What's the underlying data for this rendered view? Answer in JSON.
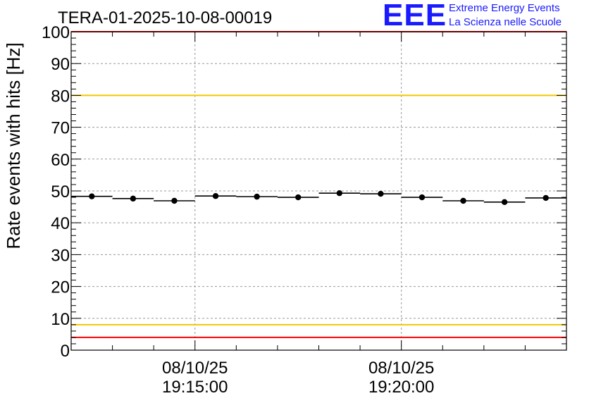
{
  "chart_data": {
    "type": "scatter",
    "title": "TERA-01-2025-10-08-00019",
    "ylabel": "Rate events with hits [Hz]",
    "xlabel": "",
    "ylim": [
      0,
      100
    ],
    "xlim": [
      -3.0,
      9.0
    ],
    "x_unit": "minutes after 19:15:00",
    "yticks": [
      0,
      10,
      20,
      30,
      40,
      50,
      60,
      70,
      80,
      90,
      100
    ],
    "xticks": [
      {
        "x": 0,
        "label_date": "08/10/25",
        "label_time": "19:15:00"
      },
      {
        "x": 5,
        "label_date": "08/10/25",
        "label_time": "19:20:00"
      }
    ],
    "grid": true,
    "bin_width_min": 1.0,
    "series": [
      {
        "name": "rate",
        "x": [
          -2.5,
          -1.5,
          -0.5,
          0.5,
          1.5,
          2.5,
          3.5,
          4.5,
          5.5,
          6.5,
          7.5,
          8.5
        ],
        "values": [
          48.3,
          47.6,
          46.9,
          48.4,
          48.2,
          48.0,
          49.3,
          49.1,
          48.0,
          46.9,
          46.5,
          47.8
        ]
      }
    ],
    "reference_lines": [
      {
        "name": "upper-red-limit",
        "y": 100,
        "color": "#ff0000"
      },
      {
        "name": "upper-yellow-limit",
        "y": 80,
        "color": "#f0c800"
      },
      {
        "name": "lower-yellow-limit",
        "y": 8,
        "color": "#f0c800"
      },
      {
        "name": "lower-red-limit",
        "y": 4,
        "color": "#ff0000"
      }
    ]
  },
  "logo": {
    "letters": "EEE",
    "line1": "Extreme Energy Events",
    "line2": "La Scienza nelle Scuole",
    "color": "#1a1aff"
  }
}
